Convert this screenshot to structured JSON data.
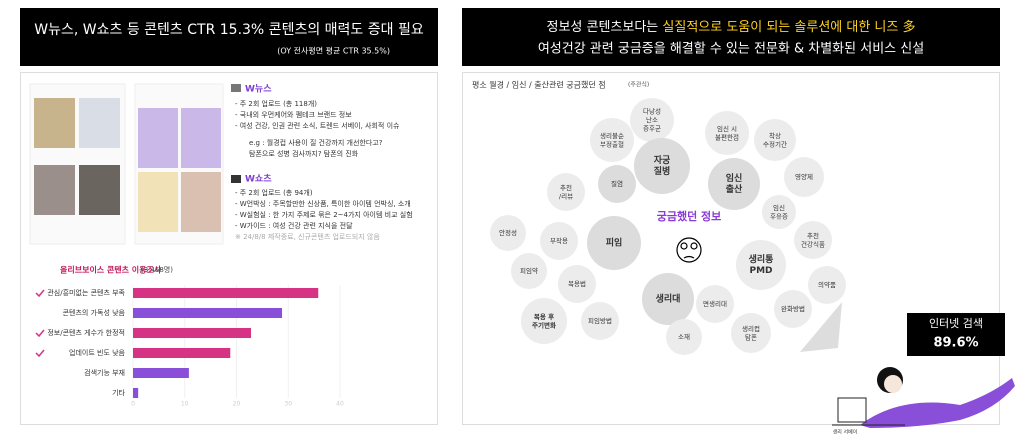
{
  "left": {
    "title": "W뉴스, W쇼츠 등 콘텐츠 CTR 15.3% 콘텐츠의 매력도 증대 필요",
    "subtitle": "(OY 전사평면 평균 CTR 35.5%)",
    "news": {
      "heading": "W뉴스",
      "lines": [
        "- 주 2회 업로드 (총 118개)",
        "- 국내외 우먼케어와 펨테크 브랜드 정보",
        "- 여성 건강, 인권 관련 소식, 트렌드 서베이, 사회적 이슈",
        "e.g : 월경컵 사용이 질 건강까지 개선한다고?",
        "탐폰으로 성병 검사까지? 탐폰의 진화"
      ]
    },
    "shorts": {
      "heading": "W쇼츠",
      "lines": [
        "- 주 2회 업로드 (총 94개)",
        "- W언박싱 : 주목할만한 신상품, 특이한 아이템 언박싱, 소개",
        "- W실험실 : 한 가지 주제로 묶은 2~4가지 아이템 비교 실험",
        "- W가이드 : 여성 건강 관련 지식을 전달",
        "※ 24/8/8 제작중료, 신규콘텐츠 업로드되지 않음"
      ]
    }
  },
  "chart_data": {
    "type": "bar",
    "orientation": "horizontal",
    "title": "올리브보이스 콘텐츠 이용조사",
    "subtitle": "(3,468명)",
    "categories": [
      "관심/흥미없는 콘텐츠 부족",
      "콘텐츠의 가독성 낮음",
      "정보/콘텐츠 게수가 한정적",
      "업데이트 빈도 낮음",
      "검색기능 부재",
      "기타"
    ],
    "values": [
      35.8,
      28.8,
      22.8,
      18.8,
      10.8,
      1
    ],
    "colors": [
      "#d63384",
      "#8a4fd8",
      "#d63384",
      "#d63384",
      "#8a4fd8",
      "#8a4fd8"
    ],
    "checked": [
      true,
      false,
      true,
      true,
      false,
      false
    ],
    "xlim": [
      0,
      40
    ],
    "xticks": [
      0,
      10,
      20,
      30,
      40
    ]
  },
  "right": {
    "title_plain": "정보성 콘텐츠보다는 ",
    "title_highlight": "실질적으로 도움이 되는 솔루션에 대한 니즈 多",
    "title_line2": "여성건강 관련 궁금증을 해결할 수 있는 전문화 & 차별화된 서비스 신설",
    "caption": "평소 월경 / 임신 / 출산관련 궁금했던 점",
    "caption_note": "(주관식)",
    "center": "궁금했던 정보",
    "callout_label": "인터넷 검색",
    "callout_value": "89.6%",
    "figure_caption": "생리 서베이",
    "bubbles": [
      [
        "다낭성",
        "난소",
        "증후군"
      ],
      [
        "생리불순",
        "부정출혈"
      ],
      [
        "자궁",
        "질병"
      ],
      [
        "질염"
      ],
      [
        "임신 시",
        "불편한점"
      ],
      [
        "착상",
        "수정기간"
      ],
      [
        "임신",
        "출산"
      ],
      [
        "영양제"
      ],
      [
        "추천",
        "/리뷰"
      ],
      [
        "임신",
        "후유증"
      ],
      [
        "추천",
        "건강식품"
      ],
      [
        "안정성"
      ],
      [
        "부작용"
      ],
      [
        "피임"
      ],
      [
        "생리통",
        "PMD"
      ],
      [
        "의약품"
      ],
      [
        "피임약"
      ],
      [
        "복용법"
      ],
      [
        "생리대"
      ],
      [
        "완화방법"
      ],
      [
        "복용 후",
        "주기변화"
      ],
      [
        "피임방법"
      ],
      [
        "면생리대"
      ],
      [
        "생리컵",
        "탐폰"
      ],
      [
        "소재"
      ]
    ]
  }
}
